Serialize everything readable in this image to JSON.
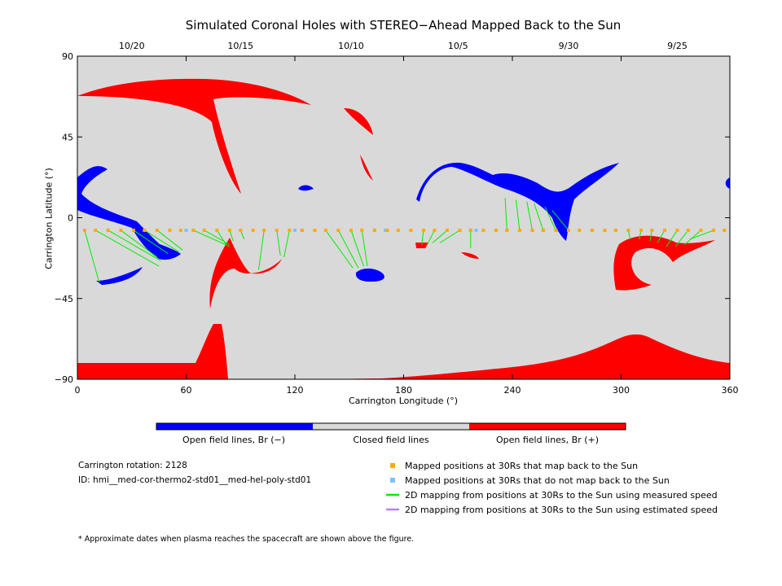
{
  "title": "Simulated Coronal Holes with STEREO−Ahead Mapped Back to the Sun",
  "colors": {
    "closed": "#d9d9d9",
    "open_negative": "#0000ff",
    "open_positive": "#ff0000",
    "maps_back": "#ffaa00",
    "not_map_back": "#7fbfff",
    "measured_speed": "#00ee00",
    "estimated_speed": "#b77fff"
  },
  "chart_data": {
    "type": "map",
    "xlabel": "Carrington Longitude (°)",
    "ylabel": "Carrington Latitude (°)",
    "xlim": [
      0,
      360
    ],
    "ylim": [
      -90,
      90
    ],
    "xticks": [
      "0",
      "60",
      "120",
      "180",
      "240",
      "300",
      "360"
    ],
    "yticks": [
      "90",
      "45",
      "0",
      "−45",
      "−90"
    ],
    "date_ticks": [
      {
        "label": "10/20",
        "lon": 30
      },
      {
        "label": "10/15",
        "lon": 90
      },
      {
        "label": "10/10",
        "lon": 151
      },
      {
        "label": "10/5",
        "lon": 210
      },
      {
        "label": "9/30",
        "lon": 271
      },
      {
        "label": "9/25",
        "lon": 331
      }
    ],
    "mapped_points": {
      "lat": -7,
      "map_back_lon": [
        4,
        10,
        17,
        24,
        31,
        37,
        44,
        51,
        57,
        64,
        70,
        77,
        84,
        90,
        97,
        103,
        110,
        117,
        124,
        131,
        137,
        144,
        151,
        157,
        164,
        171,
        177,
        184,
        191,
        197,
        204,
        211,
        217,
        224,
        231,
        237,
        244,
        251,
        257,
        264,
        271,
        277,
        284,
        291,
        297,
        304,
        311,
        317,
        324,
        331,
        337,
        344,
        351,
        357
      ],
      "not_map_back_lon": [
        60,
        64,
        120,
        124,
        164,
        170,
        217,
        220,
        224,
        231,
        237,
        244,
        251,
        257,
        284,
        291,
        297,
        304,
        317,
        324,
        351,
        357
      ]
    },
    "legend": [
      {
        "label": "Mapped positions at 30Rs that map back to the Sun",
        "color": "#ffaa00",
        "kind": "square"
      },
      {
        "label": "Mapped positions at 30Rs that do not map back to the Sun",
        "color": "#7fbfff",
        "kind": "square"
      },
      {
        "label": "2D mapping from positions at 30Rs to the Sun using measured speed",
        "color": "#00ee00",
        "kind": "line"
      },
      {
        "label": "2D mapping from positions at 30Rs to the Sun using estimated speed",
        "color": "#b77fff",
        "kind": "line"
      }
    ]
  },
  "colorbar": {
    "labels": [
      "Open field lines, Br (−)",
      "Closed field lines",
      "Open field lines, Br (+)"
    ]
  },
  "info": {
    "rotation": "Carrington rotation: 2128",
    "id": "ID: hmi__med-cor-thermo2-std01__med-hel-poly-std01"
  },
  "footnote": "* Approximate dates when plasma reaches the spacecraft are shown above the figure."
}
